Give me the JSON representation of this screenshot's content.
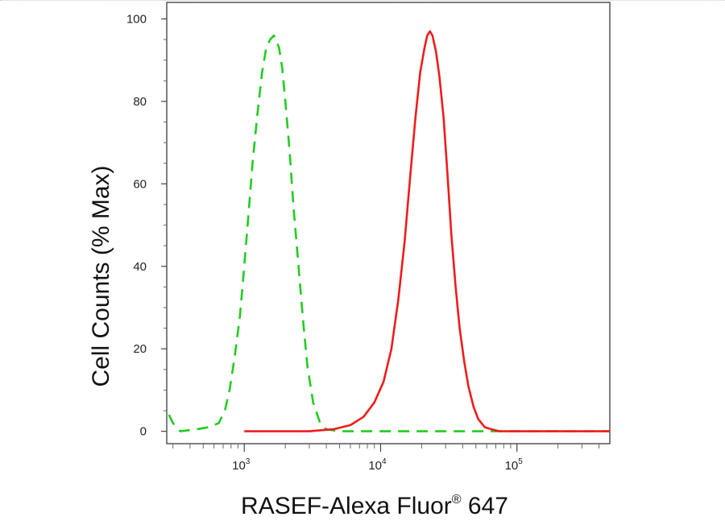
{
  "chart_data": {
    "type": "line",
    "title": "",
    "xlabel": "RASEF-Alexa Fluor",
    "xlabel_mark": "®",
    "xlabel_suffix": " 647",
    "ylabel": "Cell Counts (% Max)",
    "x_scale": "log",
    "xlim": [
      270,
      480000
    ],
    "ylim": [
      -3,
      104
    ],
    "x_ticks": [
      {
        "value": 1000,
        "base": "10",
        "exp": "3"
      },
      {
        "value": 10000,
        "base": "10",
        "exp": "4"
      },
      {
        "value": 100000,
        "base": "10",
        "exp": "5"
      }
    ],
    "y_ticks": [
      0,
      20,
      40,
      60,
      80,
      100
    ],
    "grid": false,
    "legend": "none",
    "series": [
      {
        "color": "#22cc22",
        "style": "dashed",
        "x": [
          280,
          300,
          340,
          450,
          550,
          650,
          720,
          780,
          850,
          930,
          1000,
          1070,
          1150,
          1250,
          1350,
          1450,
          1550,
          1650,
          1700,
          1800,
          1900,
          2000,
          2150,
          2300,
          2500,
          2700,
          2900,
          3200,
          3600,
          4000,
          5000,
          7000,
          10000,
          20000,
          50000,
          100000,
          480000
        ],
        "y": [
          4,
          2,
          0,
          0.5,
          1,
          2,
          5,
          10,
          18,
          28,
          40,
          52,
          65,
          77,
          87,
          93,
          95,
          96,
          95,
          93,
          88,
          80,
          68,
          54,
          40,
          27,
          16,
          7,
          2,
          0.5,
          0,
          0,
          0,
          0,
          0,
          0,
          0
        ]
      },
      {
        "color": "#ee1c1c",
        "style": "solid",
        "x": [
          1000,
          2000,
          3000,
          4500,
          6000,
          7500,
          9000,
          10500,
          12000,
          13500,
          15000,
          16500,
          18000,
          19500,
          21000,
          22000,
          23000,
          24000,
          25500,
          27000,
          29000,
          31000,
          33000,
          35500,
          38000,
          41000,
          44000,
          48000,
          52000,
          58000,
          65000,
          75000,
          90000,
          150000,
          480000
        ],
        "y": [
          0,
          0,
          0,
          0.5,
          1.5,
          3.5,
          7,
          12,
          20,
          32,
          46,
          62,
          76,
          87,
          93,
          96,
          97,
          96,
          92,
          86,
          76,
          62,
          48,
          35,
          25,
          17,
          11,
          6,
          3,
          1,
          0.5,
          0,
          0,
          0,
          0
        ]
      }
    ]
  }
}
